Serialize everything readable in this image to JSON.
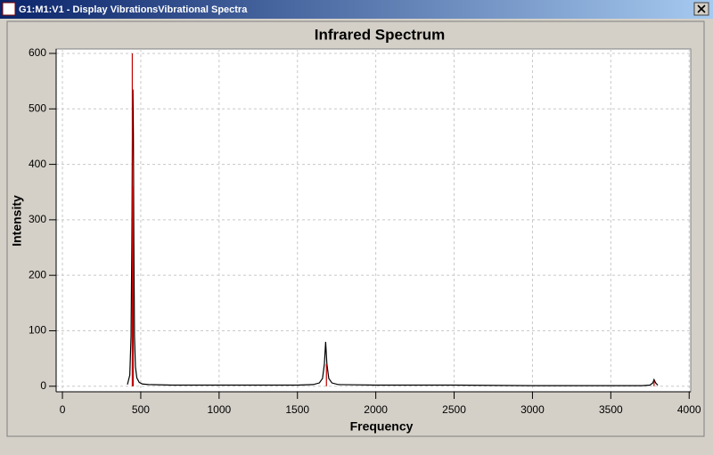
{
  "window": {
    "title": "G1:M1:V1 - Display VibrationsVibrational Spectra"
  },
  "chart_data": {
    "type": "line",
    "title": "Infrared Spectrum",
    "x_label": "Frequency",
    "y_label": "Intensity",
    "xlim": [
      -40,
      4010
    ],
    "ylim": [
      -10,
      608
    ],
    "xticks": [
      0,
      500,
      1000,
      1500,
      2000,
      2500,
      3000,
      3500,
      4000
    ],
    "yticks": [
      0,
      100,
      200,
      300,
      400,
      500,
      600
    ],
    "grid": true,
    "series": [
      {
        "style": "line",
        "color": "#000000",
        "x": [
          415,
          430,
          438,
          443,
          447,
          450,
          453,
          456,
          460,
          466,
          475,
          490,
          510,
          550,
          700,
          1000,
          1500,
          1600,
          1640,
          1660,
          1672,
          1680,
          1688,
          1700,
          1720,
          1760,
          2000,
          2500,
          3000,
          3500,
          3700,
          3750,
          3768,
          3776,
          3786,
          3800
        ],
        "values": [
          3,
          20,
          90,
          260,
          455,
          535,
          455,
          260,
          90,
          35,
          15,
          7,
          4,
          3,
          2,
          2,
          2,
          3,
          6,
          14,
          40,
          80,
          40,
          14,
          6,
          3,
          2,
          2,
          1,
          1,
          1,
          2,
          6,
          12,
          6,
          2
        ]
      },
      {
        "style": "stick",
        "color": "#c00000",
        "x": [
          446,
          452,
          1685,
          3776
        ],
        "values": [
          600,
          360,
          40,
          10
        ]
      }
    ]
  }
}
